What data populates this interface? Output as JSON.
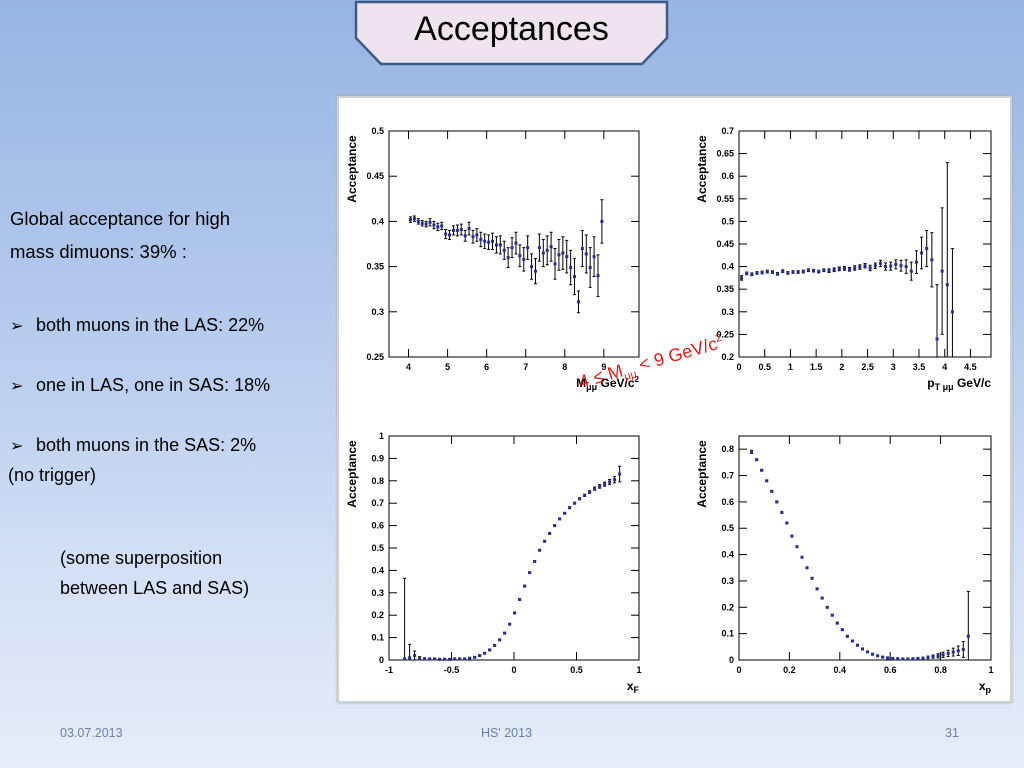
{
  "slide": {
    "title": "Acceptances",
    "summary_line1": "Global acceptance for high",
    "summary_line2": "mass dimuons:  39% :",
    "bullets": [
      "both muons in the LAS: 22%",
      "one in LAS, one in SAS: 18%",
      "both muons in the SAS: 2%"
    ],
    "bullet3_note": "(no trigger)",
    "note_line1": "(some superposition",
    "note_line2": "between LAS and SAS)",
    "mass_range": {
      "prefix": "4 ≤ M",
      "sub": "μμ",
      "mid": " < 9 GeV/c",
      "sup": "2"
    },
    "footer": {
      "date": "03.07.2013",
      "event": "HS' 2013",
      "page": "31"
    }
  },
  "colors": {
    "title_border": "#3c5a8c",
    "title_fill": "#efe3ee",
    "highlight": "#e11b1b",
    "marker": "#2b2b8c"
  },
  "chart_data": [
    {
      "type": "scatter",
      "ylabel": "Acceptance",
      "xlabel": "M",
      "xlabel_sub": "μμ",
      "xlabel_unit": " GeV/c",
      "xlabel_sup": "2",
      "xlim": [
        3.5,
        9.9
      ],
      "ylim": [
        0.25,
        0.5
      ],
      "xticks": [
        "4",
        "5",
        "6",
        "7",
        "8",
        "9"
      ],
      "xtick_values": [
        4,
        5,
        6,
        7,
        8,
        9
      ],
      "yticks": [
        "0.25",
        "0.3",
        "0.35",
        "0.4",
        "0.45",
        "0.5"
      ],
      "ytick_values": [
        0.25,
        0.3,
        0.35,
        0.4,
        0.45,
        0.5
      ],
      "x": [
        4.05,
        4.15,
        4.25,
        4.35,
        4.45,
        4.55,
        4.65,
        4.75,
        4.85,
        4.95,
        5.05,
        5.15,
        5.25,
        5.35,
        5.45,
        5.55,
        5.65,
        5.75,
        5.85,
        5.95,
        6.05,
        6.15,
        6.25,
        6.35,
        6.45,
        6.55,
        6.65,
        6.75,
        6.85,
        6.95,
        7.05,
        7.15,
        7.25,
        7.35,
        7.45,
        7.55,
        7.65,
        7.75,
        7.85,
        7.95,
        8.05,
        8.15,
        8.25,
        8.35,
        8.45,
        8.55,
        8.65,
        8.75,
        8.85,
        8.95
      ],
      "y": [
        0.402,
        0.403,
        0.4,
        0.398,
        0.397,
        0.399,
        0.396,
        0.394,
        0.395,
        0.386,
        0.385,
        0.39,
        0.39,
        0.391,
        0.384,
        0.392,
        0.383,
        0.385,
        0.38,
        0.378,
        0.377,
        0.378,
        0.374,
        0.374,
        0.368,
        0.36,
        0.371,
        0.376,
        0.362,
        0.358,
        0.371,
        0.35,
        0.345,
        0.371,
        0.365,
        0.368,
        0.372,
        0.353,
        0.363,
        0.365,
        0.361,
        0.349,
        0.339,
        0.311,
        0.37,
        0.364,
        0.349,
        0.361,
        0.34,
        0.4
      ],
      "yerr": [
        0.003,
        0.003,
        0.003,
        0.003,
        0.003,
        0.004,
        0.004,
        0.004,
        0.004,
        0.005,
        0.005,
        0.005,
        0.006,
        0.006,
        0.006,
        0.007,
        0.007,
        0.007,
        0.008,
        0.008,
        0.008,
        0.009,
        0.009,
        0.01,
        0.01,
        0.011,
        0.011,
        0.012,
        0.012,
        0.013,
        0.013,
        0.014,
        0.014,
        0.015,
        0.015,
        0.016,
        0.016,
        0.017,
        0.017,
        0.018,
        0.018,
        0.019,
        0.02,
        0.012,
        0.02,
        0.021,
        0.022,
        0.022,
        0.023,
        0.024
      ]
    },
    {
      "type": "scatter",
      "ylabel": "Acceptance",
      "xlabel": "p",
      "xlabel_sub": "T μμ",
      "xlabel_unit": " GeV/c",
      "xlabel_sup": "",
      "xlim": [
        0,
        4.9
      ],
      "ylim": [
        0.2,
        0.7
      ],
      "xticks": [
        "0",
        "0.5",
        "1",
        "1.5",
        "2",
        "2.5",
        "3",
        "3.5",
        "4",
        "4.5"
      ],
      "xtick_values": [
        0,
        0.5,
        1,
        1.5,
        2,
        2.5,
        3,
        3.5,
        4,
        4.5
      ],
      "yticks": [
        "0.2",
        "0.25",
        "0.3",
        "0.35",
        "0.4",
        "0.45",
        "0.5",
        "0.55",
        "0.6",
        "0.65",
        "0.7"
      ],
      "ytick_values": [
        0.2,
        0.25,
        0.3,
        0.35,
        0.4,
        0.45,
        0.5,
        0.55,
        0.6,
        0.65,
        0.7
      ],
      "x": [
        0.05,
        0.15,
        0.25,
        0.35,
        0.45,
        0.55,
        0.65,
        0.75,
        0.85,
        0.95,
        1.05,
        1.15,
        1.25,
        1.35,
        1.45,
        1.55,
        1.65,
        1.75,
        1.85,
        1.95,
        2.05,
        2.15,
        2.25,
        2.35,
        2.45,
        2.55,
        2.65,
        2.75,
        2.85,
        2.95,
        3.05,
        3.15,
        3.25,
        3.35,
        3.45,
        3.55,
        3.65,
        3.75,
        3.85,
        3.95,
        4.05,
        4.15
      ],
      "y": [
        0.375,
        0.385,
        0.383,
        0.386,
        0.387,
        0.389,
        0.388,
        0.384,
        0.39,
        0.386,
        0.388,
        0.388,
        0.389,
        0.392,
        0.391,
        0.389,
        0.392,
        0.391,
        0.393,
        0.395,
        0.396,
        0.394,
        0.397,
        0.399,
        0.402,
        0.397,
        0.402,
        0.407,
        0.4,
        0.401,
        0.405,
        0.402,
        0.4,
        0.39,
        0.41,
        0.43,
        0.44,
        0.415,
        0.24,
        0.39,
        0.36,
        0.3
      ],
      "yerr": [
        0.005,
        0.003,
        0.003,
        0.003,
        0.003,
        0.003,
        0.003,
        0.003,
        0.003,
        0.003,
        0.003,
        0.003,
        0.003,
        0.003,
        0.003,
        0.003,
        0.003,
        0.004,
        0.004,
        0.004,
        0.004,
        0.004,
        0.005,
        0.005,
        0.005,
        0.006,
        0.006,
        0.007,
        0.008,
        0.009,
        0.01,
        0.012,
        0.015,
        0.02,
        0.025,
        0.035,
        0.04,
        0.06,
        0.12,
        0.14,
        0.27,
        0.14
      ]
    },
    {
      "type": "scatter",
      "ylabel": "Acceptance",
      "xlabel": "x",
      "xlabel_sub": "F",
      "xlabel_unit": "",
      "xlabel_sup": "",
      "xlim": [
        -1,
        1
      ],
      "ylim": [
        0,
        1
      ],
      "xticks": [
        "-1",
        "-0.5",
        "0",
        "0.5",
        "1"
      ],
      "xtick_values": [
        -1,
        -0.5,
        0,
        0.5,
        1
      ],
      "yticks": [
        "0",
        "0.1",
        "0.2",
        "0.3",
        "0.4",
        "0.5",
        "0.6",
        "0.7",
        "0.8",
        "0.9",
        "1"
      ],
      "ytick_values": [
        0,
        0.1,
        0.2,
        0.3,
        0.4,
        0.5,
        0.6,
        0.7,
        0.8,
        0.9,
        1
      ],
      "x": [
        -0.875,
        -0.835,
        -0.795,
        -0.755,
        -0.715,
        -0.675,
        -0.635,
        -0.595,
        -0.555,
        -0.515,
        -0.475,
        -0.435,
        -0.395,
        -0.355,
        -0.315,
        -0.275,
        -0.235,
        -0.195,
        -0.155,
        -0.115,
        -0.075,
        -0.035,
        0.005,
        0.045,
        0.085,
        0.125,
        0.165,
        0.205,
        0.245,
        0.285,
        0.325,
        0.365,
        0.405,
        0.445,
        0.485,
        0.525,
        0.565,
        0.605,
        0.645,
        0.685,
        0.725,
        0.765,
        0.805,
        0.845
      ],
      "y": [
        0.005,
        0.01,
        0.02,
        0.005,
        0.005,
        0.005,
        0.005,
        0.003,
        0.003,
        0.003,
        0.005,
        0.005,
        0.005,
        0.008,
        0.012,
        0.02,
        0.03,
        0.045,
        0.065,
        0.09,
        0.12,
        0.16,
        0.21,
        0.27,
        0.33,
        0.39,
        0.44,
        0.49,
        0.53,
        0.565,
        0.6,
        0.63,
        0.655,
        0.68,
        0.7,
        0.72,
        0.735,
        0.75,
        0.765,
        0.775,
        0.785,
        0.795,
        0.805,
        0.83
      ],
      "yerr": [
        0.36,
        0.06,
        0.02,
        0.01,
        0.005,
        0.004,
        0.003,
        0.003,
        0.003,
        0.003,
        0.003,
        0.003,
        0.003,
        0.003,
        0.003,
        0.003,
        0.003,
        0.003,
        0.003,
        0.003,
        0.003,
        0.003,
        0.003,
        0.003,
        0.003,
        0.003,
        0.003,
        0.003,
        0.003,
        0.003,
        0.003,
        0.003,
        0.003,
        0.004,
        0.004,
        0.004,
        0.005,
        0.006,
        0.007,
        0.008,
        0.009,
        0.011,
        0.014,
        0.035
      ]
    },
    {
      "type": "scatter",
      "ylabel": "Acceptance",
      "xlabel": "x",
      "xlabel_sub": "p",
      "xlabel_unit": "",
      "xlabel_sup": "",
      "xlim": [
        0,
        1
      ],
      "ylim": [
        0,
        0.85
      ],
      "xticks": [
        "0",
        "0.2",
        "0.4",
        "0.6",
        "0.8",
        "1"
      ],
      "xtick_values": [
        0,
        0.2,
        0.4,
        0.6,
        0.8,
        1
      ],
      "yticks": [
        "0",
        "0.1",
        "0.2",
        "0.3",
        "0.4",
        "0.5",
        "0.6",
        "0.7",
        "0.8"
      ],
      "ytick_values": [
        0,
        0.1,
        0.2,
        0.3,
        0.4,
        0.5,
        0.6,
        0.7,
        0.8
      ],
      "x": [
        0.05,
        0.07,
        0.09,
        0.11,
        0.13,
        0.15,
        0.17,
        0.19,
        0.21,
        0.23,
        0.25,
        0.27,
        0.29,
        0.31,
        0.33,
        0.35,
        0.37,
        0.39,
        0.41,
        0.43,
        0.45,
        0.47,
        0.49,
        0.51,
        0.53,
        0.55,
        0.57,
        0.59,
        0.61,
        0.63,
        0.65,
        0.67,
        0.69,
        0.71,
        0.73,
        0.75,
        0.77,
        0.79,
        0.81,
        0.83,
        0.85,
        0.87,
        0.89,
        0.91
      ],
      "y": [
        0.79,
        0.76,
        0.72,
        0.68,
        0.64,
        0.6,
        0.56,
        0.52,
        0.47,
        0.43,
        0.39,
        0.35,
        0.31,
        0.27,
        0.235,
        0.2,
        0.17,
        0.14,
        0.115,
        0.09,
        0.072,
        0.056,
        0.042,
        0.031,
        0.022,
        0.016,
        0.011,
        0.008,
        0.006,
        0.005,
        0.004,
        0.004,
        0.005,
        0.006,
        0.007,
        0.01,
        0.013,
        0.016,
        0.02,
        0.025,
        0.03,
        0.035,
        0.04,
        0.09
      ],
      "yerr": [
        0.006,
        0.003,
        0.003,
        0.003,
        0.003,
        0.003,
        0.003,
        0.003,
        0.003,
        0.003,
        0.003,
        0.003,
        0.003,
        0.003,
        0.003,
        0.003,
        0.003,
        0.003,
        0.003,
        0.003,
        0.003,
        0.003,
        0.003,
        0.003,
        0.003,
        0.003,
        0.003,
        0.003,
        0.003,
        0.003,
        0.003,
        0.003,
        0.003,
        0.003,
        0.004,
        0.005,
        0.006,
        0.008,
        0.01,
        0.012,
        0.015,
        0.018,
        0.03,
        0.17
      ]
    }
  ]
}
